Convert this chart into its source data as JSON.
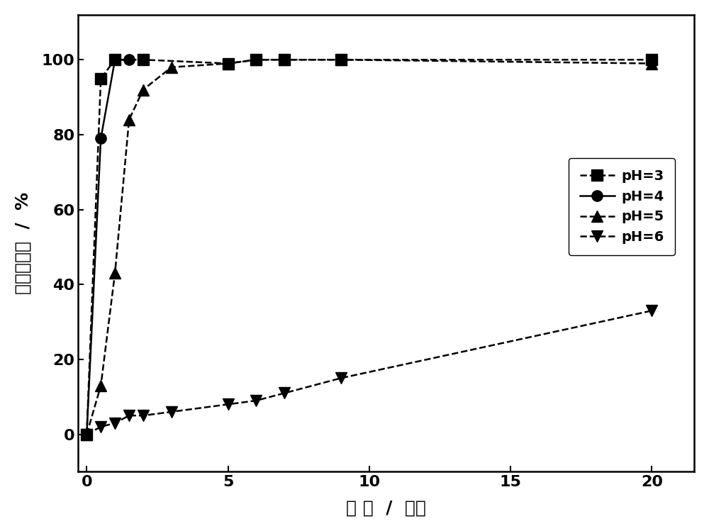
{
  "series": {
    "pH3": {
      "x": [
        0,
        0.5,
        1.0,
        2.0,
        5.0,
        6.0,
        7.0,
        9.0,
        20.0
      ],
      "y": [
        0,
        95,
        100,
        100,
        99,
        100,
        100,
        100,
        100
      ],
      "marker": "s",
      "label": "pH=3",
      "linestyle": "--"
    },
    "pH4": {
      "x": [
        0,
        0.5,
        1.0,
        1.5
      ],
      "y": [
        0,
        79,
        100,
        100
      ],
      "marker": "o",
      "label": "pH=4",
      "linestyle": "-"
    },
    "pH5": {
      "x": [
        0,
        0.5,
        1.0,
        1.5,
        2.0,
        3.0,
        5.0,
        6.0,
        7.0,
        9.0,
        20.0
      ],
      "y": [
        0,
        13,
        43,
        84,
        92,
        98,
        99,
        100,
        100,
        100,
        99
      ],
      "marker": "^",
      "label": "pH=5",
      "linestyle": "--"
    },
    "pH6": {
      "x": [
        0,
        0.5,
        1.0,
        1.5,
        2.0,
        3.0,
        5.0,
        6.0,
        7.0,
        9.0,
        20.0
      ],
      "y": [
        0,
        2,
        3,
        5,
        5,
        6,
        8,
        9,
        11,
        15,
        33
      ],
      "marker": "v",
      "label": "pH=6",
      "linestyle": "--"
    }
  },
  "xlabel": "时间 / 小时",
  "ylabel": "苯酚去除率 / %",
  "xlabel_display": "时 间  /  小时",
  "ylabel_display": "苯酚去除率  /  %",
  "xlim": [
    -0.3,
    21.5
  ],
  "ylim": [
    -10,
    112
  ],
  "xticks": [
    0,
    5,
    10,
    15,
    20
  ],
  "yticks": [
    0,
    20,
    40,
    60,
    80,
    100
  ],
  "color": "#000000",
  "background_color": "#ffffff",
  "markersize": 11,
  "linewidth": 1.8,
  "axis_fontsize": 18,
  "tick_fontsize": 16,
  "legend_fontsize": 14
}
